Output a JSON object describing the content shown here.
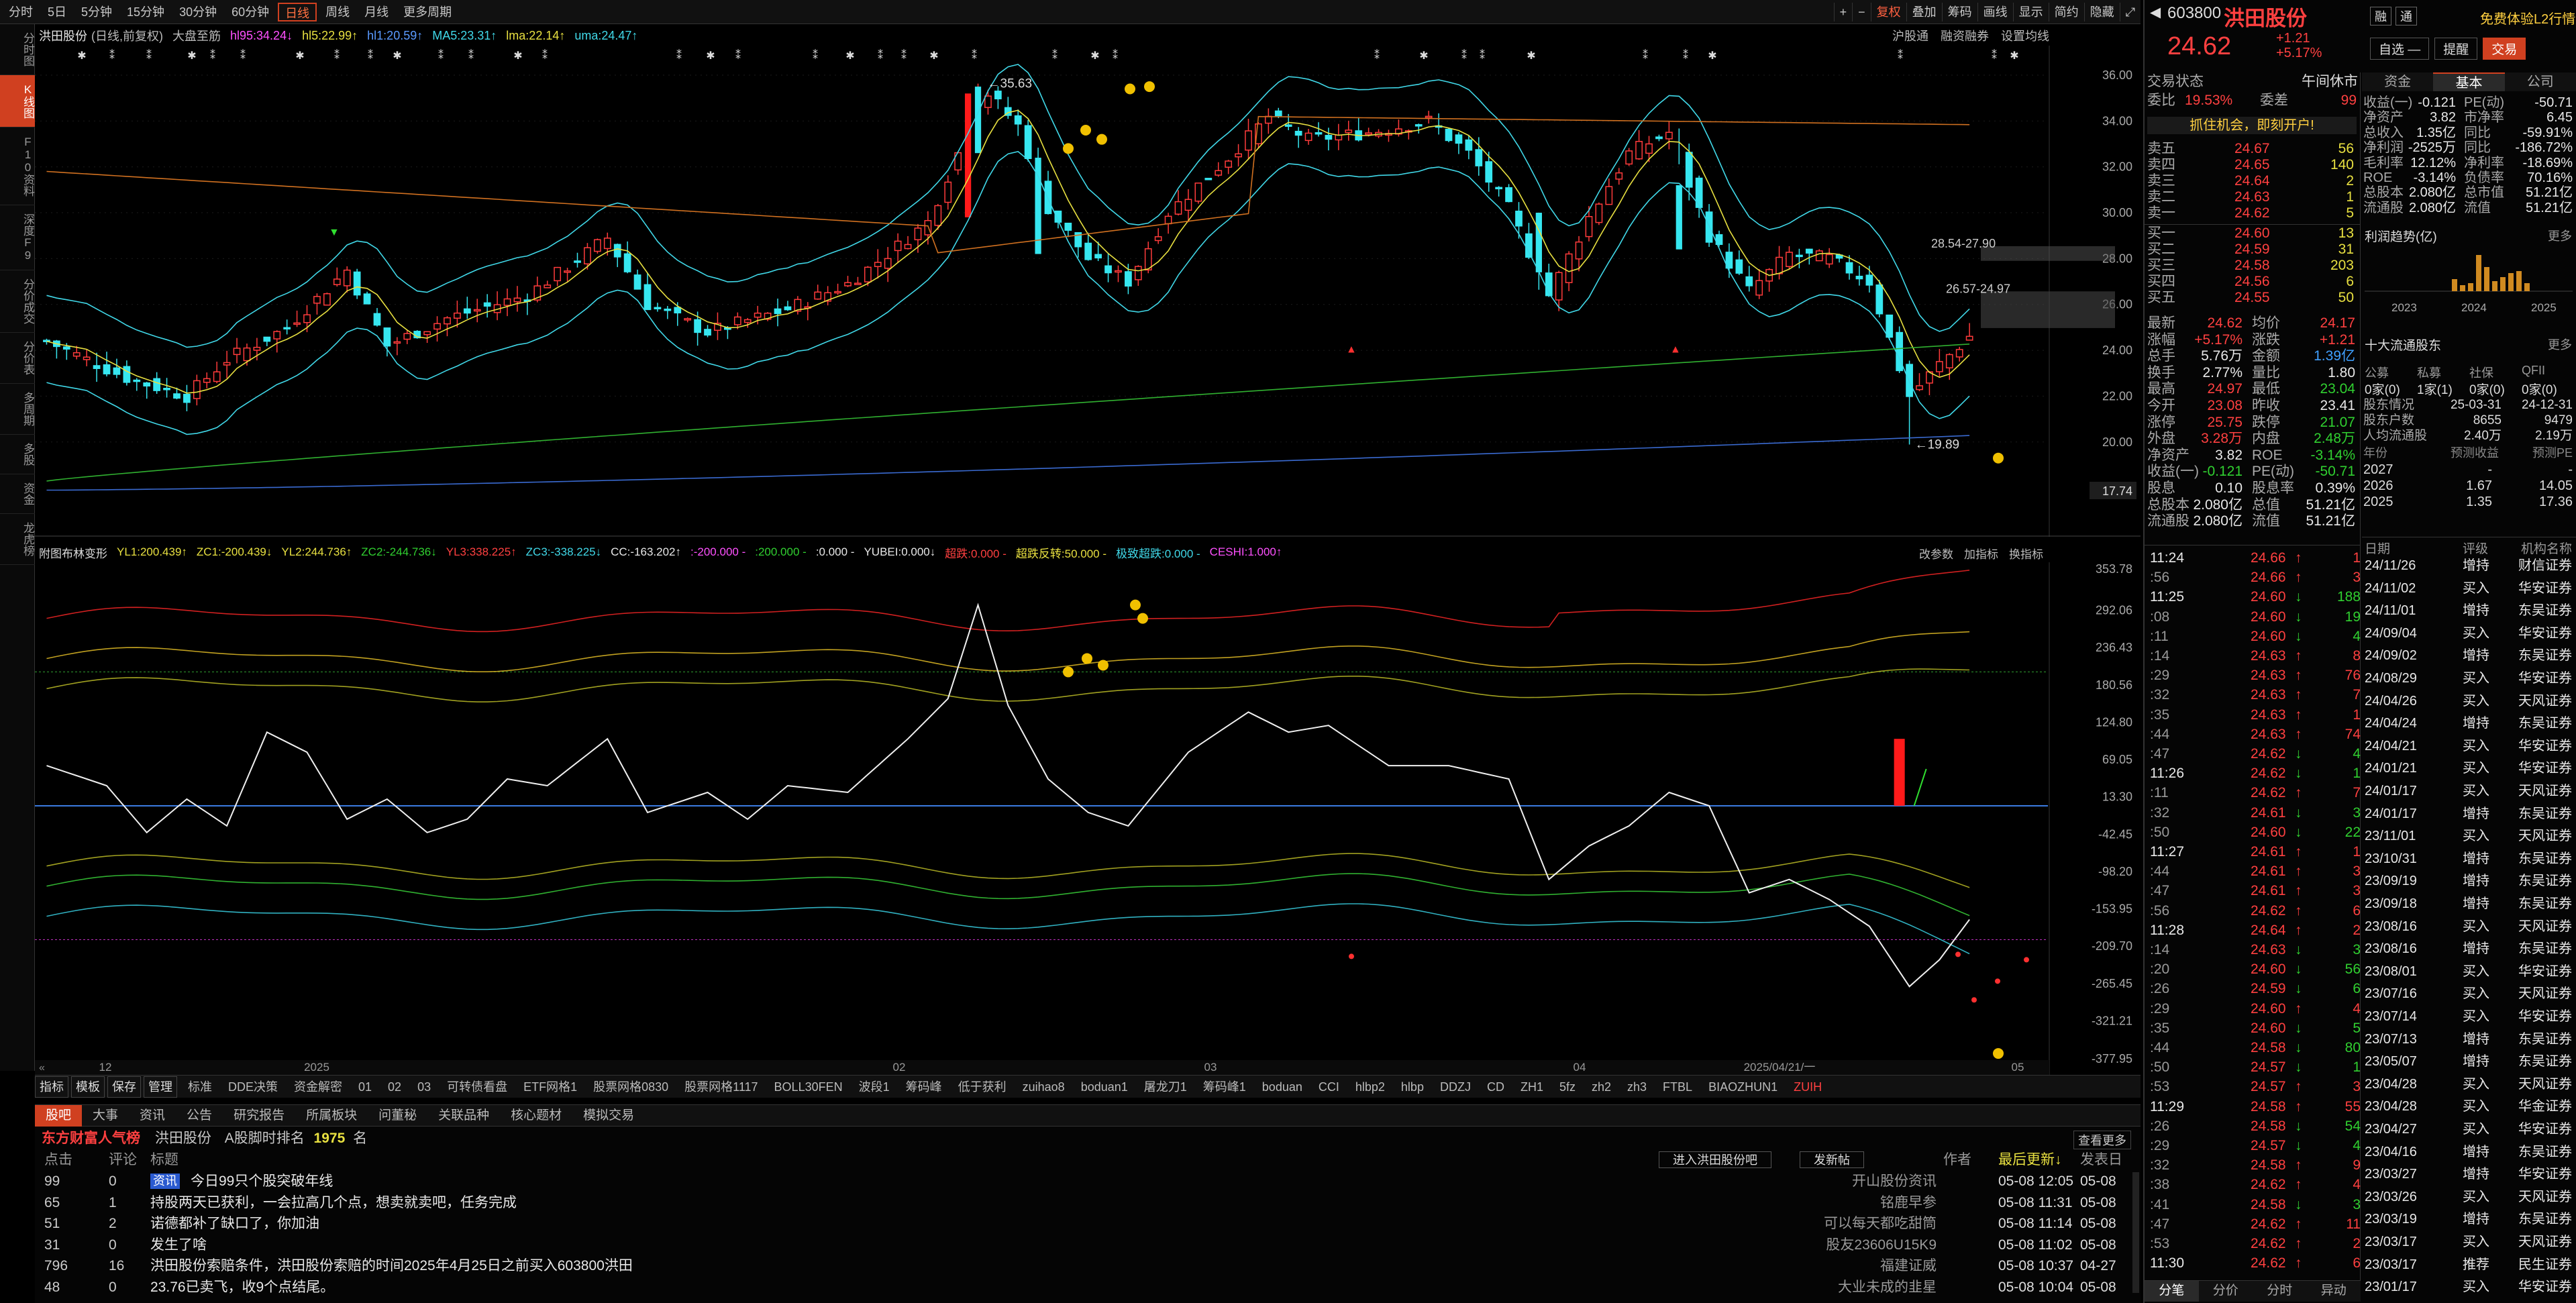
{
  "toolbar": {
    "periods": [
      "分时",
      "5日",
      "5分钟",
      "15分钟",
      "30分钟",
      "60分钟",
      "日线",
      "周线",
      "月线",
      "更多周期"
    ],
    "active_period": "日线",
    "right_buttons": [
      "复权",
      "叠加",
      "筹码",
      "画线",
      "显示",
      "简约",
      "隐藏"
    ]
  },
  "left_nav": [
    "分时图",
    "K线图",
    "F10资料",
    "深度F9",
    "分价成交",
    "分价表",
    "多周期",
    "多股",
    "资金",
    "龙虎榜"
  ],
  "indicator_line": {
    "name": "洪田股份",
    "adj": "(日线,前复权)",
    "extra": "大盘至筋",
    "items": [
      {
        "t": "hl95:34.24↓",
        "c": "#ff50ff"
      },
      {
        "t": "hl5:22.99↑",
        "c": "#e8e040"
      },
      {
        "t": "hl1:20.59↑",
        "c": "#5a9aff"
      },
      {
        "t": "MA5:23.31↑",
        "c": "#40d8e8"
      },
      {
        "t": "lma:22.14↑",
        "c": "#e8e040"
      },
      {
        "t": "uma:24.47↑",
        "c": "#40d8e8"
      }
    ],
    "right": [
      "沪股通",
      "融资融券",
      "设置均线"
    ]
  },
  "sub_indicator_line": {
    "name": "附图布林变形",
    "items": [
      {
        "t": "YL1:200.439↑",
        "c": "#e8e040"
      },
      {
        "t": "ZC1:-200.439↓",
        "c": "#e8e040"
      },
      {
        "t": "YL2:244.736↑",
        "c": "#e8e040"
      },
      {
        "t": "ZC2:-244.736↓",
        "c": "#30d030"
      },
      {
        "t": "YL3:338.225↑",
        "c": "#ff4040"
      },
      {
        "t": "ZC3:-338.225↓",
        "c": "#40d8e8"
      },
      {
        "t": "CC:-163.202↑",
        "c": "#e8e8e8"
      },
      {
        "t": ":-200.000 -",
        "c": "#ff50ff"
      },
      {
        "t": ":200.000 -",
        "c": "#30d030"
      },
      {
        "t": ":0.000 -",
        "c": "#e8e8e8"
      },
      {
        "t": "YUBEI:0.000↓",
        "c": "#e8e8e8"
      },
      {
        "t": "超跌:0.000 -",
        "c": "#ff4040"
      },
      {
        "t": "超跌反转:50.000 -",
        "c": "#e8e040"
      },
      {
        "t": "极致超跌:0.000 -",
        "c": "#40d8e8"
      },
      {
        "t": "CESHI:1.000↑",
        "c": "#ff50ff"
      }
    ],
    "right": [
      "改参数",
      "加指标",
      "换指标"
    ]
  },
  "main_axis": [
    "36.00",
    "34.00",
    "32.00",
    "30.00",
    "28.00",
    "26.00",
    "24.00",
    "22.00",
    "20.00",
    "17.74"
  ],
  "sub_axis": [
    "353.78",
    "292.06",
    "236.43",
    "180.56",
    "124.80",
    "69.05",
    "13.30",
    "-42.45",
    "-98.20",
    "-153.95",
    "-209.70",
    "-265.45",
    "-321.21",
    "-377.95"
  ],
  "date_axis": [
    "12",
    "2025",
    "02",
    "03",
    "04",
    "2025/04/21/一",
    "05"
  ],
  "annotations": {
    "high": "35.63",
    "low": "19.89",
    "zone1": "28.54-27.90",
    "zone2": "26.57-24.97"
  },
  "chart_data": {
    "type": "candlestick",
    "title": "洪田股份 (日线,前复权)",
    "ylim": [
      17.74,
      36.0
    ],
    "high": 35.63,
    "low": 19.89,
    "sub_ylim": [
      -377.95,
      353.78
    ]
  },
  "indicator_tabs": [
    "指标",
    "模板",
    "保存",
    "管理",
    "标准",
    "DDE决策",
    "资金解密",
    "01",
    "02",
    "03",
    "可转债看盘",
    "ETF网格1",
    "股票网格0830",
    "股票网格1117",
    "BOLL30FEN",
    "波段1",
    "筹码峰",
    "低于获利",
    "zuihao8",
    "boduan1",
    "屠龙刀1",
    "筹码峰1",
    "boduan",
    "CCI",
    "hlbp2",
    "hlbp",
    "DDZJ",
    "CD",
    "ZH1",
    "5fz",
    "zh2",
    "zh3",
    "FTBL",
    "BIAOZHUN1",
    "ZUIH"
  ],
  "news": {
    "tabs": [
      "股吧",
      "大事",
      "资讯",
      "公告",
      "研究报告",
      "所属板块",
      "问董秘",
      "关联品种",
      "核心题材",
      "模拟交易"
    ],
    "rank_label": "东方财富人气榜",
    "stock": "洪田股份",
    "rank_text": "A股脚时排名",
    "rank": "1975",
    "rank_unit": "名",
    "view_more": "查看更多",
    "enter_btn": "进入洪田股份吧",
    "post_btn": "发新帖",
    "headers": {
      "clicks": "点击",
      "comments": "评论",
      "title": "标题",
      "author": "作者",
      "updated": "最后更新↓",
      "posted": "发表日"
    },
    "rows": [
      {
        "clicks": "99",
        "comments": "0",
        "tag": "资讯",
        "title": "今日99只个股突破年线",
        "author": "开山股份资讯",
        "updated": "05-08 12:05",
        "posted": "05-08"
      },
      {
        "clicks": "65",
        "comments": "1",
        "title": "持股两天已获利，一会拉高几个点，想卖就卖吧，任务完成",
        "author": "铭鹿早参",
        "updated": "05-08 11:31",
        "posted": "05-08"
      },
      {
        "clicks": "51",
        "comments": "2",
        "title": "诺德都补了缺口了，你加油",
        "author": "可以每天都吃甜筒",
        "updated": "05-08 11:14",
        "posted": "05-08"
      },
      {
        "clicks": "31",
        "comments": "0",
        "title": "发生了啥",
        "author": "股友23606U15K9",
        "updated": "05-08 11:02",
        "posted": "05-08"
      },
      {
        "clicks": "796",
        "comments": "16",
        "title": "洪田股份索赔条件，洪田股份索赔的时间2025年4月25日之前买入603800洪田",
        "author": "福建证威",
        "updated": "05-08 10:37",
        "posted": "04-27"
      },
      {
        "clicks": "48",
        "comments": "0",
        "title": "23.76已卖飞，收9个点结尾。",
        "author": "大业未成的韭星",
        "updated": "05-08 10:04",
        "posted": "05-08"
      }
    ]
  },
  "quote": {
    "code": "603800",
    "name": "洪田股份",
    "price": "24.62",
    "change": "+1.21",
    "pct": "+5.17%",
    "tags": [
      "融",
      "通"
    ],
    "l2": "免费体验L2行情",
    "tools": [
      "自选 —",
      "提醒",
      "交易"
    ],
    "status_label": "交易状态",
    "status": "午间休市",
    "webi_label": "委比",
    "webi": "19.53%",
    "weicha_label": "委差",
    "weicha": "99",
    "banner": "抓住机会，即刻开户!",
    "asks": [
      {
        "l": "卖五",
        "p": "24.67",
        "v": "56"
      },
      {
        "l": "卖四",
        "p": "24.65",
        "v": "140"
      },
      {
        "l": "卖三",
        "p": "24.64",
        "v": "2"
      },
      {
        "l": "卖二",
        "p": "24.63",
        "v": "1"
      },
      {
        "l": "卖一",
        "p": "24.62",
        "v": "5"
      }
    ],
    "bids": [
      {
        "l": "买一",
        "p": "24.60",
        "v": "13"
      },
      {
        "l": "买二",
        "p": "24.59",
        "v": "31"
      },
      {
        "l": "买三",
        "p": "24.58",
        "v": "203"
      },
      {
        "l": "买四",
        "p": "24.56",
        "v": "6"
      },
      {
        "l": "买五",
        "p": "24.55",
        "v": "50"
      }
    ],
    "stats": [
      [
        "最新",
        "24.62",
        "均价",
        "24.17"
      ],
      [
        "涨幅",
        "+5.17%",
        "涨跌",
        "+1.21"
      ],
      [
        "总手",
        "5.76万",
        "金额",
        "1.39亿"
      ],
      [
        "换手",
        "2.77%",
        "量比",
        "1.80"
      ],
      [
        "最高",
        "24.97",
        "最低",
        "23.04"
      ],
      [
        "今开",
        "23.08",
        "昨收",
        "23.41"
      ],
      [
        "涨停",
        "25.75",
        "跌停",
        "21.07"
      ],
      [
        "外盘",
        "3.28万",
        "内盘",
        "2.48万"
      ],
      [
        "净资产",
        "3.82",
        "ROE",
        "-3.14%"
      ],
      [
        "收益(一)",
        "-0.121",
        "PE(动)",
        "-50.71"
      ],
      [
        "股息",
        "0.10",
        "股息率",
        "0.39%"
      ],
      [
        "总股本",
        "2.080亿",
        "总值",
        "51.21亿"
      ],
      [
        "流通股",
        "2.080亿",
        "流值",
        "51.21亿"
      ]
    ]
  },
  "ticks": [
    {
      "t": "11:24",
      "p": "24.66",
      "v": "1",
      "c": "r"
    },
    {
      "t": ":56",
      "p": "24.66",
      "v": "3",
      "c": "r"
    },
    {
      "t": "11:25",
      "p": "24.60",
      "v": "188",
      "c": "g"
    },
    {
      "t": ":08",
      "p": "24.60",
      "v": "19",
      "c": "g"
    },
    {
      "t": ":11",
      "p": "24.60",
      "v": "4",
      "c": "g"
    },
    {
      "t": ":14",
      "p": "24.63",
      "v": "8",
      "c": "r"
    },
    {
      "t": ":29",
      "p": "24.63",
      "v": "76",
      "c": "r"
    },
    {
      "t": ":32",
      "p": "24.63",
      "v": "7",
      "c": "r"
    },
    {
      "t": ":35",
      "p": "24.63",
      "v": "1",
      "c": "r"
    },
    {
      "t": ":44",
      "p": "24.63",
      "v": "74",
      "c": "r"
    },
    {
      "t": ":47",
      "p": "24.62",
      "v": "4",
      "c": "g"
    },
    {
      "t": "11:26",
      "p": "24.62",
      "v": "1",
      "c": "g"
    },
    {
      "t": ":11",
      "p": "24.62",
      "v": "7",
      "c": "r"
    },
    {
      "t": ":32",
      "p": "24.61",
      "v": "3",
      "c": "g"
    },
    {
      "t": ":50",
      "p": "24.60",
      "v": "22",
      "c": "g"
    },
    {
      "t": "11:27",
      "p": "24.61",
      "v": "1",
      "c": "r"
    },
    {
      "t": ":44",
      "p": "24.61",
      "v": "3",
      "c": "r"
    },
    {
      "t": ":47",
      "p": "24.61",
      "v": "3",
      "c": "r"
    },
    {
      "t": ":56",
      "p": "24.62",
      "v": "6",
      "c": "r"
    },
    {
      "t": "11:28",
      "p": "24.64",
      "v": "2",
      "c": "r"
    },
    {
      "t": ":14",
      "p": "24.63",
      "v": "3",
      "c": "g"
    },
    {
      "t": ":20",
      "p": "24.60",
      "v": "56",
      "c": "g"
    },
    {
      "t": ":26",
      "p": "24.59",
      "v": "6",
      "c": "g"
    },
    {
      "t": ":29",
      "p": "24.60",
      "v": "4",
      "c": "r"
    },
    {
      "t": ":35",
      "p": "24.60",
      "v": "5",
      "c": "g"
    },
    {
      "t": ":44",
      "p": "24.58",
      "v": "80",
      "c": "g"
    },
    {
      "t": ":50",
      "p": "24.57",
      "v": "1",
      "c": "g"
    },
    {
      "t": ":53",
      "p": "24.57",
      "v": "3",
      "c": "r"
    },
    {
      "t": "11:29",
      "p": "24.58",
      "v": "55",
      "c": "r"
    },
    {
      "t": ":26",
      "p": "24.58",
      "v": "54",
      "c": "g"
    },
    {
      "t": ":29",
      "p": "24.57",
      "v": "4",
      "c": "g"
    },
    {
      "t": ":32",
      "p": "24.58",
      "v": "9",
      "c": "r"
    },
    {
      "t": ":38",
      "p": "24.62",
      "v": "4",
      "c": "r"
    },
    {
      "t": ":41",
      "p": "24.58",
      "v": "3",
      "c": "g"
    },
    {
      "t": ":47",
      "p": "24.62",
      "v": "11",
      "c": "r"
    },
    {
      "t": ":53",
      "p": "24.62",
      "v": "2",
      "c": "r"
    },
    {
      "t": "11:30",
      "p": "24.62",
      "v": "6",
      "c": "r"
    }
  ],
  "tick_tabs": [
    "分笔",
    "分价",
    "分时",
    "异动"
  ],
  "fin": {
    "tabs": [
      "资金",
      "基本",
      "公司"
    ],
    "rows": [
      [
        "收益(一)",
        "-0.121",
        "PE(动)",
        "-50.71"
      ],
      [
        "净资产",
        "3.82",
        "市净率",
        "6.45"
      ],
      [
        "总收入",
        "1.35亿",
        "同比",
        "-59.91%"
      ],
      [
        "净利润",
        "-2525万",
        "同比",
        "-186.72%"
      ],
      [
        "毛利率",
        "12.12%",
        "净利率",
        "-18.69%"
      ],
      [
        "ROE",
        "-3.14%",
        "负债率",
        "70.16%"
      ],
      [
        "总股本",
        "2.080亿",
        "总市值",
        "51.21亿"
      ],
      [
        "流通股",
        "2.080亿",
        "流值",
        "51.21亿"
      ]
    ],
    "trend_label": "利润趋势(亿)",
    "more": "更多",
    "years": [
      "2023",
      "2024",
      "2025"
    ],
    "bars": [
      0.3,
      0.15,
      0.2,
      0.9,
      0.6,
      0.25,
      0.35,
      0.45,
      0.5,
      0.2
    ],
    "holders_label": "十大流通股东",
    "holder_tabs": [
      "公募",
      "私募",
      "社保",
      "QFII"
    ],
    "holder_vals": [
      "0家(0)",
      "1家(1)",
      "0家(0)",
      "0家(0)"
    ],
    "holder_rows": [
      [
        "股东情况",
        "25-03-31",
        "24-12-31"
      ],
      [
        "股东户数",
        "8655",
        "9479"
      ],
      [
        "人均流通股",
        "2.40万",
        "2.19万"
      ]
    ],
    "eps_header": [
      "年份",
      "预测收益",
      "预测PE"
    ],
    "eps_rows": [
      [
        "2027",
        "-",
        "-"
      ],
      [
        "2026",
        "1.67",
        "14.05"
      ],
      [
        "2025",
        "1.35",
        "17.36"
      ]
    ]
  },
  "ratings": {
    "headers": [
      "日期",
      "评级",
      "机构名称"
    ],
    "rows": [
      [
        "24/11/26",
        "增持",
        "财信证券"
      ],
      [
        "24/11/02",
        "买入",
        "华安证券"
      ],
      [
        "24/11/01",
        "增持",
        "东吴证券"
      ],
      [
        "24/09/04",
        "买入",
        "华安证券"
      ],
      [
        "24/09/02",
        "增持",
        "东吴证券"
      ],
      [
        "24/08/29",
        "买入",
        "华安证券"
      ],
      [
        "24/04/26",
        "买入",
        "天风证券"
      ],
      [
        "24/04/24",
        "增持",
        "东吴证券"
      ],
      [
        "24/04/21",
        "买入",
        "华安证券"
      ],
      [
        "24/01/21",
        "买入",
        "华安证券"
      ],
      [
        "24/01/17",
        "买入",
        "天风证券"
      ],
      [
        "24/01/17",
        "增持",
        "东吴证券"
      ],
      [
        "23/11/01",
        "买入",
        "天风证券"
      ],
      [
        "23/10/31",
        "增持",
        "东吴证券"
      ],
      [
        "23/09/19",
        "增持",
        "东吴证券"
      ],
      [
        "23/09/18",
        "增持",
        "东吴证券"
      ],
      [
        "23/08/16",
        "买入",
        "天风证券"
      ],
      [
        "23/08/16",
        "增持",
        "东吴证券"
      ],
      [
        "23/08/01",
        "买入",
        "华安证券"
      ],
      [
        "23/07/16",
        "买入",
        "天风证券"
      ],
      [
        "23/07/14",
        "买入",
        "华安证券"
      ],
      [
        "23/07/13",
        "增持",
        "东吴证券"
      ],
      [
        "23/05/07",
        "增持",
        "东吴证券"
      ],
      [
        "23/04/28",
        "买入",
        "天风证券"
      ],
      [
        "23/04/28",
        "买入",
        "华金证券"
      ],
      [
        "23/04/27",
        "买入",
        "华安证券"
      ],
      [
        "23/04/16",
        "增持",
        "东吴证券"
      ],
      [
        "23/03/27",
        "增持",
        "华安证券"
      ],
      [
        "23/03/26",
        "买入",
        "天风证券"
      ],
      [
        "23/03/19",
        "增持",
        "东吴证券"
      ],
      [
        "23/03/17",
        "买入",
        "天风证券"
      ],
      [
        "23/03/17",
        "推荐",
        "民生证券"
      ],
      [
        "23/01/17",
        "买入",
        "华安证券"
      ]
    ]
  }
}
